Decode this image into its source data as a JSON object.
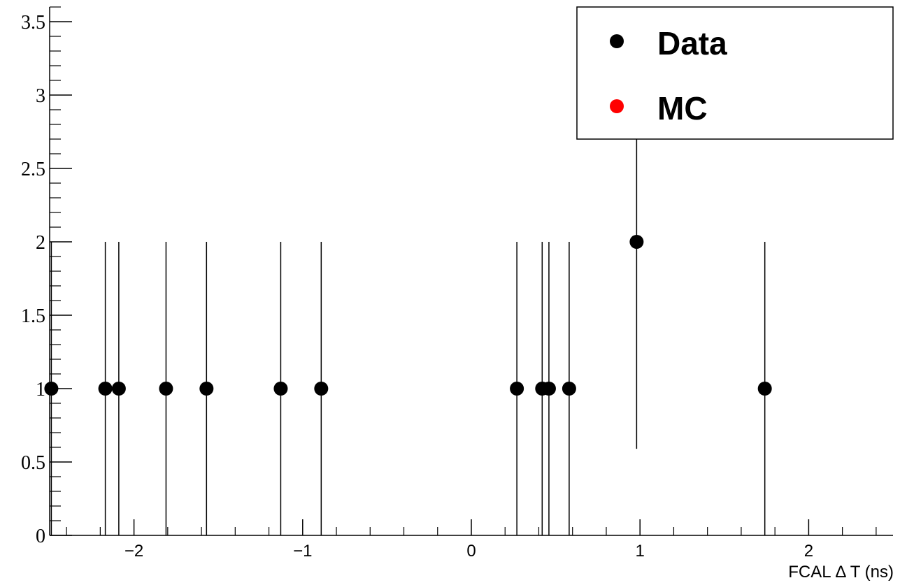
{
  "chart_data": {
    "type": "scatter",
    "xlabel": "FCAL Δ T (ns)",
    "ylabel": "",
    "xlim": [
      -2.5,
      2.5
    ],
    "ylim": [
      0,
      3.6
    ],
    "x_ticks": [
      -2,
      -1,
      0,
      1,
      2
    ],
    "x_tick_labels": [
      "−2",
      "−1",
      "0",
      "1",
      "2"
    ],
    "y_ticks": [
      0,
      0.5,
      1,
      1.5,
      2,
      2.5,
      3,
      3.5
    ],
    "y_tick_labels": [
      "0",
      "0.5",
      "1",
      "1.5",
      "2",
      "2.5",
      "3",
      "3.5"
    ],
    "grid": false,
    "legend_position": "top-right",
    "series": [
      {
        "name": "Data",
        "color": "#000000",
        "x": [
          -2.49,
          -2.17,
          -2.09,
          -1.81,
          -1.57,
          -1.13,
          -0.89,
          0.27,
          0.42,
          0.46,
          0.58,
          0.98,
          1.74
        ],
        "y": [
          1,
          1,
          1,
          1,
          1,
          1,
          1,
          1,
          1,
          1,
          1,
          2,
          1
        ],
        "err_low": [
          1,
          1,
          1,
          1,
          1,
          1,
          1,
          1,
          1,
          1,
          1,
          1.41,
          1
        ],
        "err_high": [
          1,
          1,
          1,
          1,
          1,
          1,
          1,
          1,
          1,
          1,
          1,
          1.41,
          1
        ]
      },
      {
        "name": "MC",
        "color": "#ff0000",
        "x": [],
        "y": []
      }
    ]
  }
}
